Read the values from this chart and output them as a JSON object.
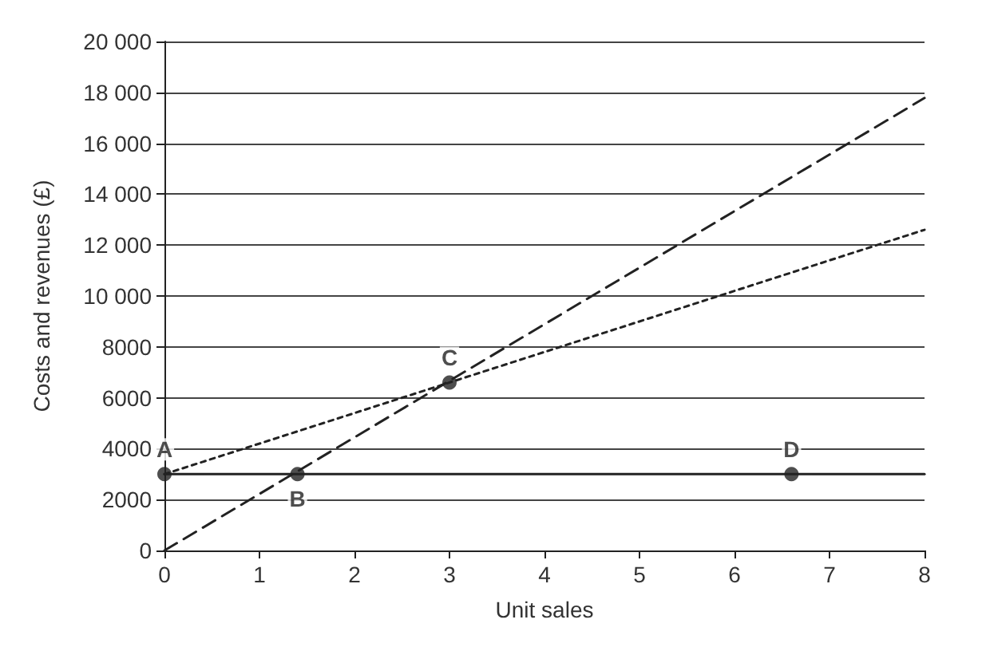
{
  "chart_data": {
    "type": "line",
    "xlabel": "Unit sales",
    "ylabel": "Costs and revenues (£)",
    "xlim": [
      0,
      8
    ],
    "xticks": [
      0,
      1,
      2,
      3,
      4,
      5,
      6,
      7,
      8
    ],
    "ylim": [
      0,
      20000
    ],
    "yticks": [
      0,
      2000,
      4000,
      6000,
      8000,
      {
        "value": 10000,
        "label": "10 000"
      },
      {
        "value": 12000,
        "label": "12 000"
      },
      {
        "value": 14000,
        "label": "14 000"
      },
      {
        "value": 16000,
        "label": "16 000"
      },
      {
        "value": 18000,
        "label": "18 000"
      },
      {
        "value": 20000,
        "label": "20 000"
      }
    ],
    "grid": "y",
    "marker": "none",
    "series": [
      {
        "color": "#222222",
        "x": [
          0,
          8
        ],
        "values": [
          3000,
          3000
        ],
        "line_style": "solid"
      },
      {
        "color": "#222222",
        "x": [
          0,
          8
        ],
        "values": [
          3000,
          12600
        ],
        "line_style": "dotted"
      },
      {
        "color": "#222222",
        "x": [
          0,
          8
        ],
        "values": [
          0,
          17780
        ],
        "line_style": "dashed"
      },
      {
        "type": "scatter",
        "color": "#222222",
        "marker": "circle",
        "x": [
          0,
          1.4,
          3,
          6.6
        ],
        "values": [
          3000,
          3000,
          6600,
          3000
        ],
        "value_labels": [
          "A",
          "B",
          "C",
          "D"
        ]
      }
    ]
  }
}
